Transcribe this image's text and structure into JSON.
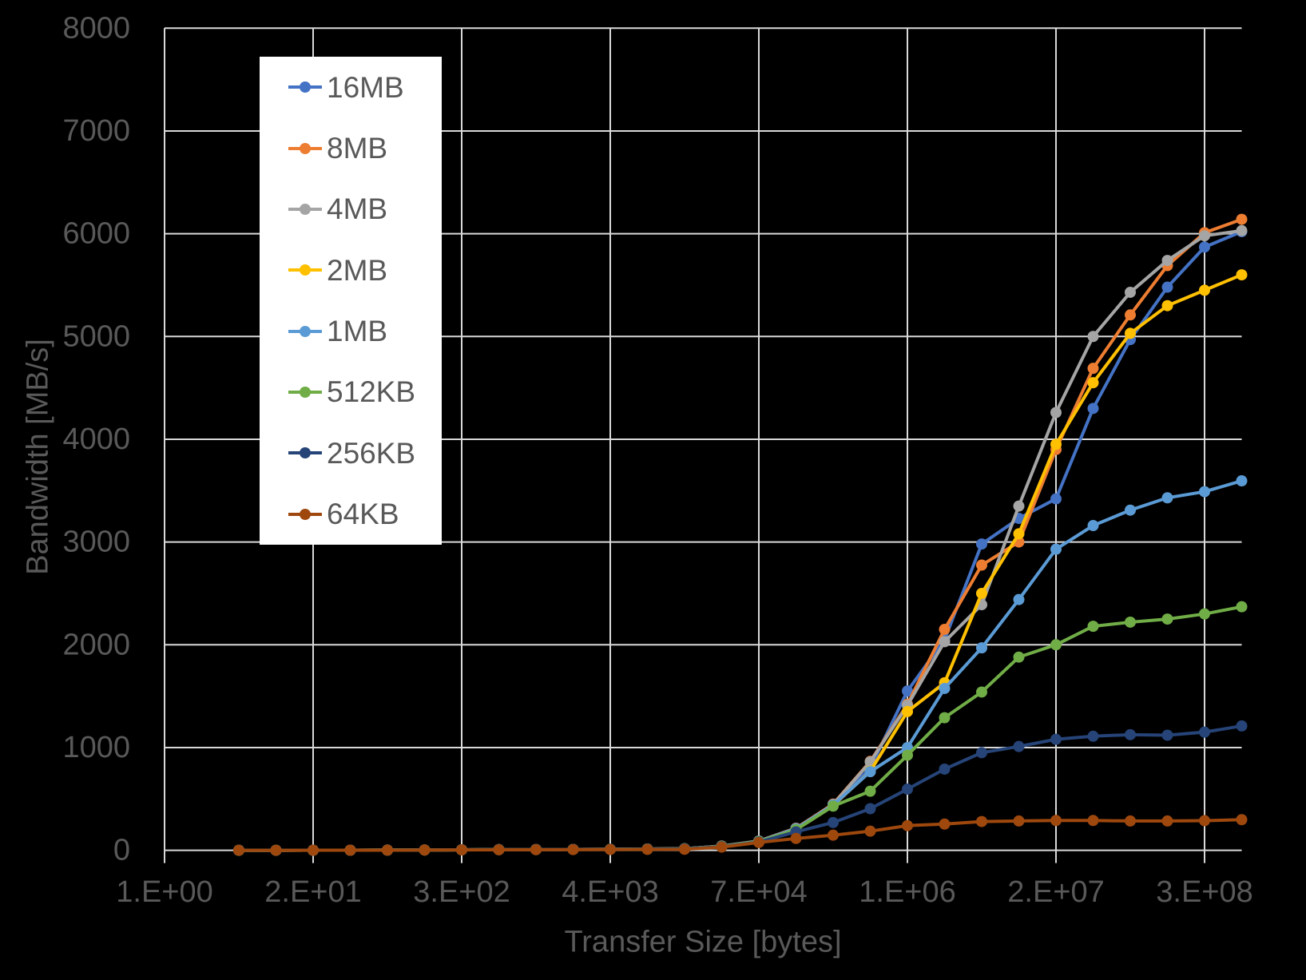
{
  "colors": {
    "background": "#000000",
    "text": "#595959",
    "gridline": "#D9D9D9",
    "legend_background": "#FFFFFF"
  },
  "chart_data": {
    "type": "line",
    "title": "",
    "xlabel": "Transfer Size [bytes]",
    "ylabel": "Bandwidth [MB/s]",
    "x_scale": "log2-category",
    "grid": true,
    "legend_position": "upper-left-inside",
    "ylim": [
      0,
      8000
    ],
    "y_tick_step": 1000,
    "y_tick_labels": [
      "0",
      "1000",
      "2000",
      "3000",
      "4000",
      "5000",
      "6000",
      "7000",
      "8000"
    ],
    "x_tick_labels": [
      "1.E+00",
      "2.E+01",
      "3.E+02",
      "4.E+03",
      "7.E+04",
      "1.E+06",
      "2.E+07",
      "3.E+08"
    ],
    "x_tick_values_bytes": [
      1,
      16,
      256,
      4096,
      65536,
      1048576,
      16777216,
      268435456
    ],
    "x_sizes_bytes": [
      4,
      8,
      16,
      32,
      64,
      128,
      256,
      512,
      1024,
      2048,
      4096,
      8192,
      16384,
      32768,
      65536,
      131072,
      262144,
      524288,
      1048576,
      2097152,
      4194304,
      8388608,
      16777216,
      33554432,
      67108864,
      134217728,
      268435456,
      536870912
    ],
    "series": [
      {
        "name": "16MB",
        "color": "#4472C4",
        "values": [
          0.1,
          0.2,
          0.4,
          0.8,
          1.5,
          3,
          5,
          7,
          8,
          9,
          10,
          12,
          15,
          40,
          90,
          215,
          445,
          800,
          1550,
          2050,
          2980,
          3230,
          3420,
          4300,
          4970,
          5480,
          5870,
          6020
        ]
      },
      {
        "name": "8MB",
        "color": "#ED7D31",
        "values": [
          0.1,
          0.2,
          0.4,
          0.8,
          1.5,
          3,
          5,
          7,
          8,
          9,
          10,
          12,
          15,
          42,
          90,
          215,
          450,
          865,
          1420,
          2150,
          2775,
          3000,
          3900,
          4690,
          5210,
          5690,
          6010,
          6140
        ]
      },
      {
        "name": "4MB",
        "color": "#A5A5A5",
        "values": [
          0.1,
          0.2,
          0.4,
          0.8,
          1.5,
          3,
          5,
          7,
          8,
          9,
          10,
          12,
          15,
          40,
          88,
          210,
          445,
          860,
          1410,
          2030,
          2390,
          3350,
          4260,
          5000,
          5430,
          5740,
          5980,
          6030
        ]
      },
      {
        "name": "2MB",
        "color": "#FFC000",
        "values": [
          0.1,
          0.2,
          0.4,
          0.8,
          1.5,
          3,
          5,
          7,
          8,
          9,
          10,
          12,
          14,
          38,
          85,
          205,
          435,
          770,
          1350,
          1630,
          2500,
          3080,
          3950,
          4550,
          5030,
          5300,
          5450,
          5600
        ]
      },
      {
        "name": "1MB",
        "color": "#5B9BD5",
        "values": [
          0.1,
          0.2,
          0.4,
          0.8,
          1.5,
          3,
          5,
          7,
          8,
          9,
          10,
          12,
          15,
          40,
          88,
          210,
          440,
          765,
          1000,
          1575,
          1970,
          2440,
          2930,
          3160,
          3310,
          3430,
          3490,
          3595
        ]
      },
      {
        "name": "512KB",
        "color": "#70AD47",
        "values": [
          0.1,
          0.2,
          0.4,
          0.8,
          1.5,
          3,
          5,
          7,
          8,
          9,
          10,
          12,
          14,
          38,
          85,
          200,
          430,
          575,
          925,
          1290,
          1540,
          1880,
          2000,
          2180,
          2220,
          2250,
          2300,
          2370
        ]
      },
      {
        "name": "256KB",
        "color": "#264478",
        "values": [
          0.1,
          0.2,
          0.4,
          0.8,
          1.5,
          3,
          5,
          7,
          8,
          9,
          10,
          11,
          13,
          35,
          80,
          180,
          270,
          405,
          595,
          790,
          950,
          1010,
          1080,
          1110,
          1125,
          1120,
          1150,
          1210
        ]
      },
      {
        "name": "64KB",
        "color": "#9E480E",
        "values": [
          0.1,
          0.2,
          0.3,
          0.6,
          1.2,
          2.5,
          4,
          5,
          6,
          7,
          8,
          9,
          10,
          31,
          76,
          115,
          147,
          186,
          240,
          255,
          280,
          285,
          290,
          290,
          285,
          285,
          288,
          298
        ]
      }
    ]
  }
}
